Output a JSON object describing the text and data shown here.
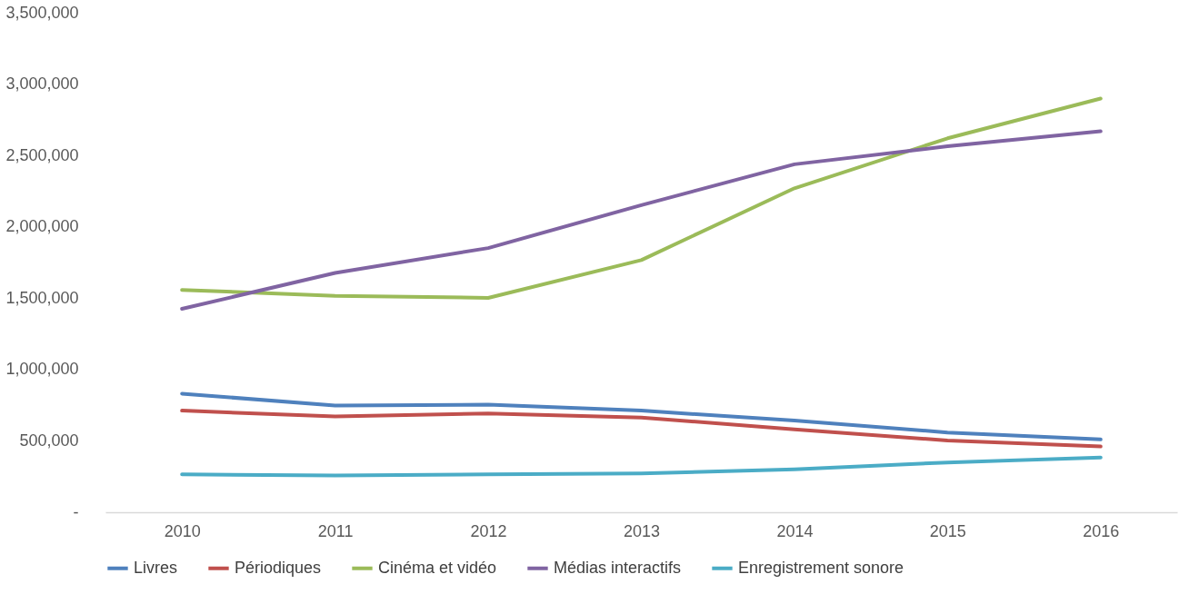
{
  "chart_data": {
    "type": "line",
    "categories": [
      "2010",
      "2011",
      "2012",
      "2013",
      "2014",
      "2015",
      "2016"
    ],
    "series": [
      {
        "name": "Livres",
        "color": "#4f81bd",
        "values": [
          831000,
          747000,
          754000,
          712000,
          643000,
          559000,
          510000
        ]
      },
      {
        "name": "Périodiques",
        "color": "#c0504d",
        "values": [
          712000,
          671000,
          692000,
          664000,
          580000,
          503000,
          461000
        ]
      },
      {
        "name": "Cinéma et vidéo",
        "color": "#9bbb59",
        "values": [
          1558000,
          1516000,
          1502000,
          1767000,
          2270000,
          2620000,
          2899000
        ]
      },
      {
        "name": "Médias interactifs",
        "color": "#8064a2",
        "values": [
          1425000,
          1677000,
          1851000,
          2152000,
          2438000,
          2564000,
          2669000
        ]
      },
      {
        "name": "Enregistrement sonore",
        "color": "#4bacc6",
        "values": [
          265000,
          258000,
          265000,
          272000,
          300000,
          349000,
          384000
        ]
      }
    ],
    "ylim": [
      0,
      3500000
    ],
    "yticks": [
      {
        "value": 0,
        "label": "-"
      },
      {
        "value": 500000,
        "label": "500,000"
      },
      {
        "value": 1000000,
        "label": "1,000,000"
      },
      {
        "value": 1500000,
        "label": "1,500,000"
      },
      {
        "value": 2000000,
        "label": "2,000,000"
      },
      {
        "value": 2500000,
        "label": "2,500,000"
      },
      {
        "value": 3000000,
        "label": "3,000,000"
      },
      {
        "value": 3500000,
        "label": "3,500,000"
      }
    ],
    "legend": "bottom",
    "grid": false,
    "marker": "none",
    "line_style": "solid"
  }
}
